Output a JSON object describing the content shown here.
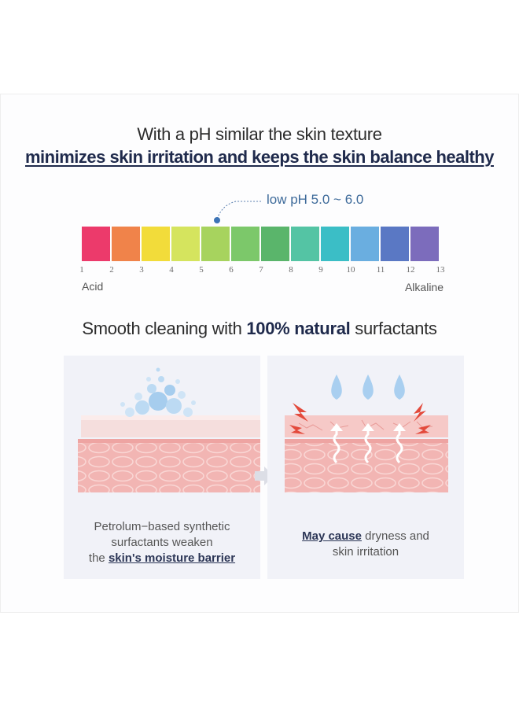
{
  "headline": {
    "line1": "With a pH similar the skin texture",
    "line2": "minimizes skin irritation and keeps the skin balance healthy"
  },
  "ph_scale": {
    "highlight_label": "low pH 5.0 ~ 6.0",
    "numbers": [
      "1",
      "2",
      "3",
      "4",
      "5",
      "6",
      "7",
      "8",
      "9",
      "10",
      "11",
      "12",
      "13"
    ],
    "colors": [
      "#ec3a6b",
      "#f0834a",
      "#f2dc3a",
      "#d5e45e",
      "#a7d35e",
      "#7cc86a",
      "#5ab56b",
      "#54c4a4",
      "#3bbec6",
      "#6aaee0",
      "#5a78c4",
      "#7c6cbc"
    ],
    "left_label": "Acid",
    "right_label": "Alkaline"
  },
  "subheading": {
    "prefix": "Smooth cleaning with ",
    "bold": "100% natural",
    "suffix": " surfactants"
  },
  "panel_left": {
    "caption_line1": "Petrolum−based synthetic",
    "caption_line2": "surfactants weaken",
    "caption_line3_prefix": "the ",
    "caption_line3_bold": "skin's moisture barrier"
  },
  "panel_right": {
    "caption_line1_bold": "May cause",
    "caption_line1_rest": " dryness and",
    "caption_line2": "skin irritation"
  },
  "icons": {
    "bubbles": "soap-bubbles-icon",
    "drops": "water-drop-icon",
    "arrow": "arrow-right-icon"
  }
}
